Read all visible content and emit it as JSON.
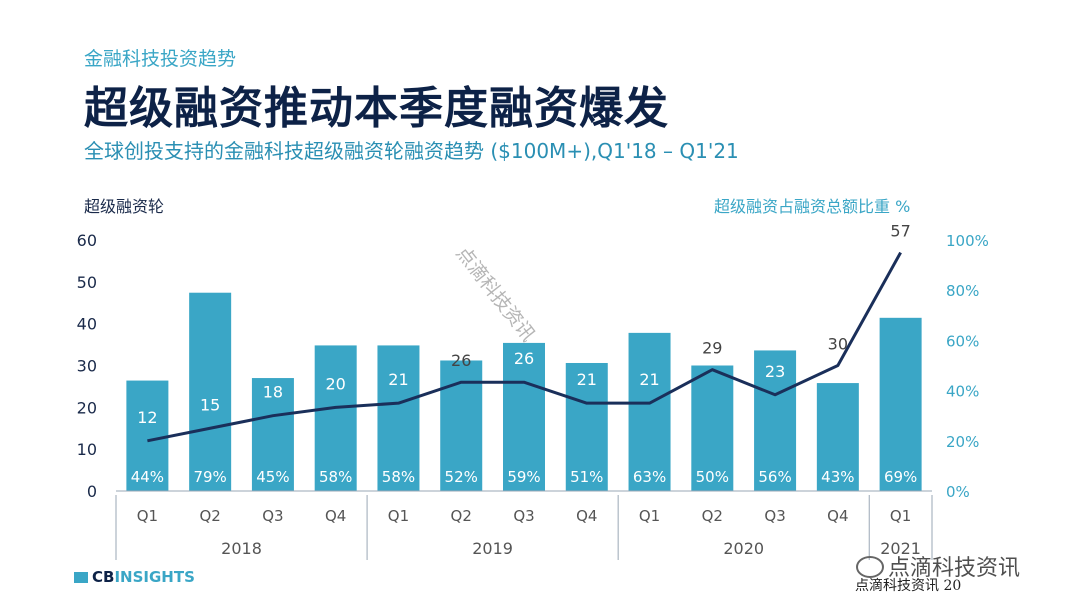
{
  "header": {
    "kicker": "金融科技投资趋势",
    "title": "超级融资推动本季度融资爆发",
    "subtitle": "全球创投支持的金融科技超级融资轮融资趋势 ($100M+),Q1'18 – Q1'21"
  },
  "axes": {
    "left_title": "超级融资轮",
    "right_title": "超级融资占融资总额比重 %"
  },
  "brand": {
    "cb": "CB",
    "insights": "INSIGHTS"
  },
  "watermark": {
    "diagonal": "点滴科技资讯",
    "bottom": "点滴科技资讯",
    "bottom_small": "点滴科技资讯",
    "page_number": "20"
  },
  "colors": {
    "bar": "#3aa6c6",
    "line": "#1a2f5a",
    "text": "#1a2a4a",
    "accent": "#3aa6c6"
  },
  "chart_data": {
    "type": "bar",
    "categories": [
      "Q1",
      "Q2",
      "Q3",
      "Q4",
      "Q1",
      "Q2",
      "Q3",
      "Q4",
      "Q1",
      "Q2",
      "Q3",
      "Q4",
      "Q1"
    ],
    "years": [
      {
        "label": "2018",
        "count": 4
      },
      {
        "label": "2019",
        "count": 4
      },
      {
        "label": "2020",
        "count": 4
      },
      {
        "label": "2021",
        "count": 1
      }
    ],
    "series": [
      {
        "type": "bar",
        "axis": "right",
        "values": [
          44,
          79,
          45,
          58,
          58,
          52,
          59,
          51,
          63,
          50,
          56,
          43,
          69
        ],
        "labels": [
          "44%",
          "79%",
          "45%",
          "58%",
          "58%",
          "52%",
          "59%",
          "51%",
          "63%",
          "50%",
          "56%",
          "43%",
          "69%"
        ]
      },
      {
        "type": "line",
        "axis": "left",
        "values": [
          12,
          15,
          18,
          20,
          21,
          26,
          26,
          21,
          21,
          29,
          23,
          30,
          57
        ]
      }
    ],
    "ylim_left": [
      0,
      60
    ],
    "yticks_left": [
      0,
      10,
      20,
      30,
      40,
      50,
      60
    ],
    "ylim_right": [
      0,
      100
    ],
    "yticks_right": [
      "0%",
      "20%",
      "40%",
      "60%",
      "80%",
      "100%"
    ],
    "grid": false
  }
}
